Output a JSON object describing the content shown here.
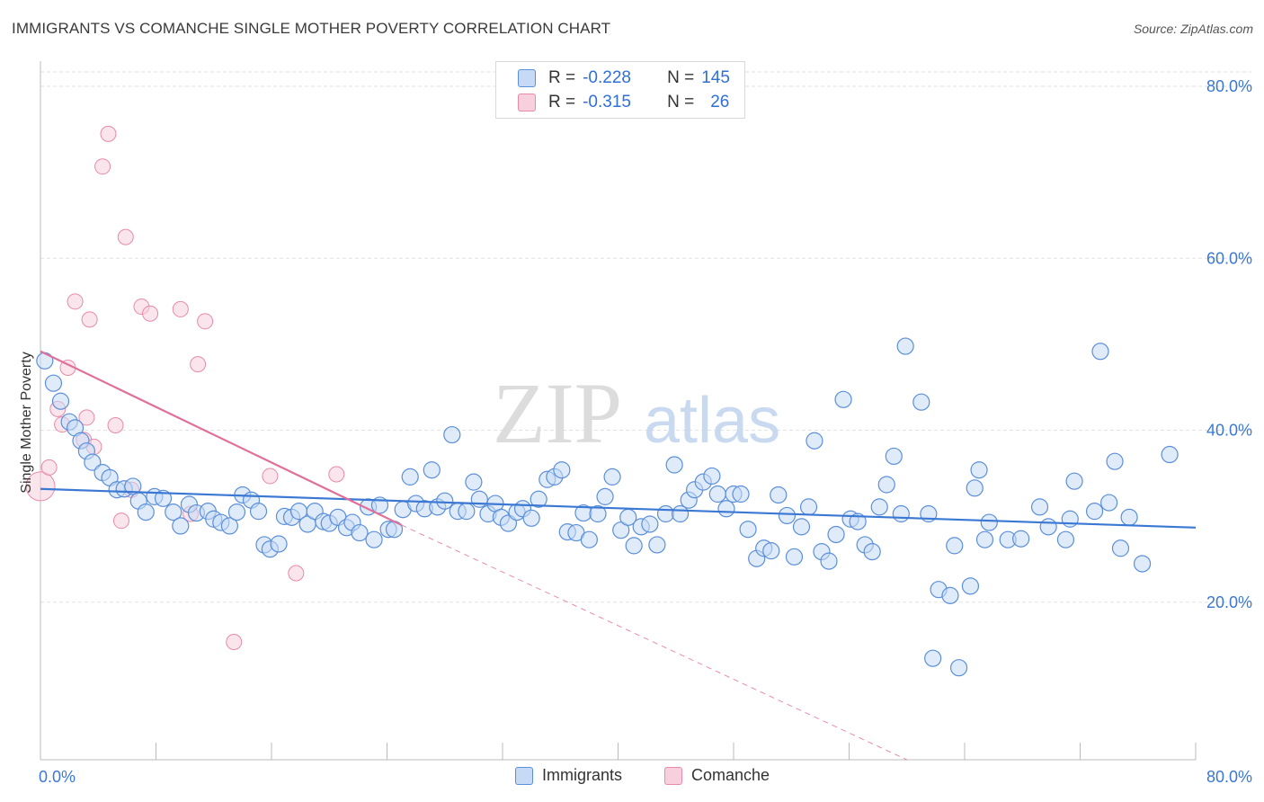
{
  "title": "IMMIGRANTS VS COMANCHE SINGLE MOTHER POVERTY CORRELATION CHART",
  "source": "Source: ZipAtlas.com",
  "watermark": {
    "zip": "ZIP",
    "atlas": "atlas"
  },
  "legend_top": [
    {
      "r_label": "R =",
      "r_value": "-0.228",
      "n_label": "N =",
      "n_value": "145",
      "color": "#5b8fd9",
      "fill": "#c6daf5"
    },
    {
      "r_label": "R =",
      "r_value": "-0.315",
      "n_label": "N =",
      "n_value": "26",
      "color": "#e88aa8",
      "fill": "#f8cfdc"
    }
  ],
  "legend_bottom": [
    {
      "label": "Immigrants",
      "color": "#5b8fd9",
      "fill": "#c6daf5"
    },
    {
      "label": "Comanche",
      "color": "#e88aa8",
      "fill": "#f8cfdc"
    }
  ],
  "chart_data": {
    "type": "scatter",
    "title": "IMMIGRANTS VS COMANCHE SINGLE MOTHER POVERTY CORRELATION CHART",
    "xlabel": "",
    "ylabel": "Single Mother Poverty",
    "xlim": [
      0,
      80
    ],
    "ylim": [
      0,
      80
    ],
    "x_tick_labels": [
      "0.0%",
      "80.0%"
    ],
    "y_tick_labels": [
      {
        "v": 20,
        "label": "20.0%"
      },
      {
        "v": 40,
        "label": "40.0%"
      },
      {
        "v": 60,
        "label": "60.0%"
      },
      {
        "v": 80,
        "label": "80.0%"
      }
    ],
    "grid": true,
    "legend_placement": "bottom",
    "series": [
      {
        "name": "Immigrants",
        "color": "#3a78d4",
        "trend": {
          "x0": 0,
          "y0": 31.5,
          "x1": 80,
          "y1": 27.0
        },
        "points": [
          [
            0.3,
            46.4
          ],
          [
            0.9,
            43.8
          ],
          [
            1.4,
            41.7
          ],
          [
            2.0,
            39.3
          ],
          [
            2.4,
            38.6
          ],
          [
            2.8,
            37.1
          ],
          [
            3.2,
            35.9
          ],
          [
            3.6,
            34.6
          ],
          [
            4.3,
            33.4
          ],
          [
            4.8,
            32.8
          ],
          [
            5.3,
            31.4
          ],
          [
            5.8,
            31.5
          ],
          [
            6.4,
            31.8
          ],
          [
            6.8,
            30.1
          ],
          [
            7.3,
            28.8
          ],
          [
            7.9,
            30.6
          ],
          [
            8.5,
            30.4
          ],
          [
            9.2,
            28.8
          ],
          [
            9.7,
            27.2
          ],
          [
            10.3,
            29.7
          ],
          [
            10.8,
            28.7
          ],
          [
            11.6,
            28.9
          ],
          [
            12.0,
            28.0
          ],
          [
            12.5,
            27.6
          ],
          [
            13.1,
            27.2
          ],
          [
            13.6,
            28.8
          ],
          [
            14.0,
            30.8
          ],
          [
            14.6,
            30.2
          ],
          [
            15.1,
            28.9
          ],
          [
            15.5,
            25.0
          ],
          [
            15.9,
            24.5
          ],
          [
            16.5,
            25.1
          ],
          [
            16.9,
            28.3
          ],
          [
            17.4,
            28.2
          ],
          [
            17.9,
            28.9
          ],
          [
            18.5,
            27.4
          ],
          [
            19.0,
            28.9
          ],
          [
            19.6,
            27.7
          ],
          [
            20.0,
            27.5
          ],
          [
            20.6,
            28.2
          ],
          [
            21.2,
            27.0
          ],
          [
            21.6,
            27.6
          ],
          [
            22.1,
            26.4
          ],
          [
            22.7,
            29.4
          ],
          [
            23.1,
            25.6
          ],
          [
            23.5,
            29.6
          ],
          [
            24.1,
            26.8
          ],
          [
            24.5,
            26.8
          ],
          [
            25.1,
            29.1
          ],
          [
            25.6,
            32.9
          ],
          [
            26.0,
            29.8
          ],
          [
            26.6,
            29.2
          ],
          [
            27.1,
            33.7
          ],
          [
            27.5,
            29.4
          ],
          [
            28.0,
            30.1
          ],
          [
            28.5,
            37.8
          ],
          [
            28.9,
            28.9
          ],
          [
            29.5,
            28.9
          ],
          [
            30.0,
            32.3
          ],
          [
            30.4,
            30.3
          ],
          [
            31.0,
            28.6
          ],
          [
            31.5,
            29.8
          ],
          [
            31.9,
            28.2
          ],
          [
            32.4,
            27.5
          ],
          [
            33.0,
            28.8
          ],
          [
            33.4,
            29.2
          ],
          [
            34.0,
            28.1
          ],
          [
            34.5,
            30.3
          ],
          [
            35.1,
            32.6
          ],
          [
            35.6,
            32.9
          ],
          [
            36.1,
            33.7
          ],
          [
            36.5,
            26.5
          ],
          [
            37.1,
            26.4
          ],
          [
            37.6,
            28.7
          ],
          [
            38.0,
            25.6
          ],
          [
            38.6,
            28.6
          ],
          [
            39.1,
            30.6
          ],
          [
            39.6,
            32.9
          ],
          [
            40.2,
            26.7
          ],
          [
            40.7,
            28.2
          ],
          [
            41.1,
            24.9
          ],
          [
            41.6,
            27.1
          ],
          [
            42.2,
            27.4
          ],
          [
            42.7,
            25.0
          ],
          [
            43.3,
            28.6
          ],
          [
            43.9,
            34.3
          ],
          [
            44.3,
            28.6
          ],
          [
            44.9,
            30.2
          ],
          [
            45.3,
            31.4
          ],
          [
            45.9,
            32.3
          ],
          [
            46.5,
            33.0
          ],
          [
            46.9,
            30.9
          ],
          [
            47.5,
            29.2
          ],
          [
            48.0,
            30.9
          ],
          [
            48.5,
            30.9
          ],
          [
            49.0,
            26.8
          ],
          [
            49.6,
            23.4
          ],
          [
            50.1,
            24.6
          ],
          [
            50.6,
            24.3
          ],
          [
            51.1,
            30.8
          ],
          [
            51.7,
            28.4
          ],
          [
            52.2,
            23.6
          ],
          [
            52.7,
            27.1
          ],
          [
            53.2,
            29.4
          ],
          [
            53.6,
            37.1
          ],
          [
            54.1,
            24.2
          ],
          [
            54.6,
            23.1
          ],
          [
            55.1,
            26.2
          ],
          [
            55.6,
            41.9
          ],
          [
            56.1,
            28.0
          ],
          [
            56.6,
            27.7
          ],
          [
            57.1,
            25.0
          ],
          [
            57.6,
            24.2
          ],
          [
            58.1,
            29.4
          ],
          [
            58.6,
            32.0
          ],
          [
            59.1,
            35.3
          ],
          [
            59.6,
            28.6
          ],
          [
            59.9,
            48.1
          ],
          [
            61.0,
            41.6
          ],
          [
            61.5,
            28.6
          ],
          [
            61.8,
            11.8
          ],
          [
            62.2,
            19.8
          ],
          [
            63.0,
            19.1
          ],
          [
            63.3,
            24.9
          ],
          [
            63.6,
            10.7
          ],
          [
            64.4,
            20.2
          ],
          [
            64.7,
            31.6
          ],
          [
            65.0,
            33.7
          ],
          [
            65.7,
            27.6
          ],
          [
            65.4,
            25.6
          ],
          [
            67.0,
            25.6
          ],
          [
            67.9,
            25.7
          ],
          [
            69.2,
            29.4
          ],
          [
            69.8,
            27.1
          ],
          [
            71.0,
            25.6
          ],
          [
            71.3,
            28.0
          ],
          [
            71.6,
            32.4
          ],
          [
            73.0,
            28.9
          ],
          [
            73.4,
            47.5
          ],
          [
            74.0,
            29.9
          ],
          [
            74.4,
            34.7
          ],
          [
            74.8,
            24.6
          ],
          [
            75.4,
            28.2
          ],
          [
            76.3,
            22.8
          ],
          [
            78.2,
            35.5
          ]
        ]
      },
      {
        "name": "Comanche",
        "color": "#e0709a",
        "trend": {
          "x0": 0,
          "y0": 47.5,
          "x1": 25,
          "y1": 27.3,
          "dash_x1": 60,
          "dash_y1": 0
        },
        "points": [
          [
            0.0,
            31.8
          ],
          [
            0.6,
            34.0
          ],
          [
            1.2,
            40.8
          ],
          [
            1.5,
            39.0
          ],
          [
            1.9,
            45.6
          ],
          [
            2.4,
            53.3
          ],
          [
            3.0,
            37.2
          ],
          [
            3.2,
            39.8
          ],
          [
            3.4,
            51.2
          ],
          [
            3.7,
            36.4
          ],
          [
            4.3,
            69.0
          ],
          [
            4.7,
            72.8
          ],
          [
            5.2,
            38.9
          ],
          [
            5.6,
            27.8
          ],
          [
            5.9,
            60.8
          ],
          [
            6.3,
            31.4
          ],
          [
            7.0,
            52.7
          ],
          [
            7.6,
            51.9
          ],
          [
            9.7,
            52.4
          ],
          [
            10.4,
            28.6
          ],
          [
            10.9,
            46.0
          ],
          [
            11.4,
            51.0
          ],
          [
            13.4,
            13.7
          ],
          [
            15.9,
            33.0
          ],
          [
            17.7,
            21.7
          ],
          [
            20.5,
            33.2
          ]
        ]
      }
    ]
  }
}
